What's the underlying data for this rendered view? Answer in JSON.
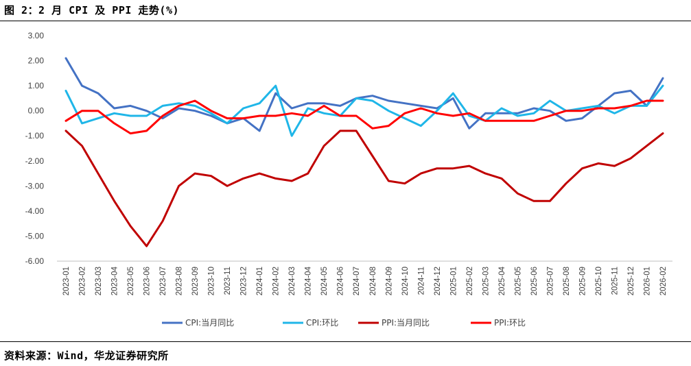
{
  "figure": {
    "title": "图 2：2 月 CPI 及 PPI 走势(%)",
    "source": "资料来源：Wind，华龙证券研究所"
  },
  "chart_data": {
    "type": "line",
    "ylim": [
      -6,
      3
    ],
    "yticks": [
      3,
      2,
      1,
      0,
      -1,
      -2,
      -3,
      -4,
      -5,
      -6
    ],
    "ytick_labels": [
      "3.00",
      "2.00",
      "1.00",
      "0.00",
      "-1.00",
      "-2.00",
      "-3.00",
      "-4.00",
      "-5.00",
      "-6.00"
    ],
    "grid": false,
    "legend_position": "bottom",
    "x": [
      "2023-01",
      "2023-02",
      "2023-03",
      "2023-04",
      "2023-05",
      "2023-06",
      "2023-07",
      "2023-08",
      "2023-09",
      "2023-10",
      "2023-11",
      "2023-12",
      "2024-01",
      "2024-02",
      "2024-03",
      "2024-04",
      "2024-05",
      "2024-06",
      "2024-07",
      "2024-08",
      "2024-09",
      "2024-10",
      "2024-11",
      "2024-12",
      "2025-01",
      "2025-02",
      "2025-03",
      "2025-04",
      "2025-05",
      "2025-06",
      "2025-07",
      "2025-08",
      "2025-09",
      "2025-10",
      "2025-11",
      "2025-12",
      "2026-01",
      "2026-02"
    ],
    "series": [
      {
        "name": "CPI:当月同比",
        "color": "#4472C4",
        "values": [
          2.1,
          1.0,
          0.7,
          0.1,
          0.2,
          0.0,
          -0.3,
          0.1,
          0.0,
          -0.2,
          -0.5,
          -0.3,
          -0.8,
          0.7,
          0.1,
          0.3,
          0.3,
          0.2,
          0.5,
          0.6,
          0.4,
          0.3,
          0.2,
          0.1,
          0.5,
          -0.7,
          -0.1,
          -0.1,
          -0.1,
          0.1,
          0.0,
          -0.4,
          -0.3,
          0.2,
          0.7,
          0.8,
          0.2,
          1.3
        ]
      },
      {
        "name": "CPI:环比",
        "color": "#1FB6E8",
        "values": [
          0.8,
          -0.5,
          -0.3,
          -0.1,
          -0.2,
          -0.2,
          0.2,
          0.3,
          0.2,
          -0.1,
          -0.5,
          0.1,
          0.3,
          1.0,
          -1.0,
          0.1,
          -0.1,
          -0.2,
          0.5,
          0.4,
          0.0,
          -0.3,
          -0.6,
          0.0,
          0.7,
          -0.2,
          -0.4,
          0.1,
          -0.2,
          -0.1,
          0.4,
          0.0,
          0.1,
          0.2,
          -0.1,
          0.2,
          0.2,
          1.0
        ]
      },
      {
        "name": "PPI:当月同比",
        "color": "#C00000",
        "values": [
          -0.8,
          -1.4,
          -2.5,
          -3.6,
          -4.6,
          -5.4,
          -4.4,
          -3.0,
          -2.5,
          -2.6,
          -3.0,
          -2.7,
          -2.5,
          -2.7,
          -2.8,
          -2.5,
          -1.4,
          -0.8,
          -0.8,
          -1.8,
          -2.8,
          -2.9,
          -2.5,
          -2.3,
          -2.3,
          -2.2,
          -2.5,
          -2.7,
          -3.3,
          -3.6,
          -3.6,
          -2.9,
          -2.3,
          -2.1,
          -2.2,
          -1.9,
          -1.4,
          -0.9
        ]
      },
      {
        "name": "PPI:环比",
        "color": "#FF0000",
        "values": [
          -0.4,
          0.0,
          0.0,
          -0.5,
          -0.9,
          -0.8,
          -0.2,
          0.2,
          0.4,
          0.0,
          -0.3,
          -0.3,
          -0.2,
          -0.2,
          -0.1,
          -0.2,
          0.2,
          -0.2,
          -0.2,
          -0.7,
          -0.6,
          -0.1,
          0.1,
          -0.1,
          -0.2,
          -0.1,
          -0.4,
          -0.4,
          -0.4,
          -0.4,
          -0.2,
          0.0,
          0.0,
          0.1,
          0.1,
          0.2,
          0.4,
          0.4
        ]
      }
    ]
  }
}
